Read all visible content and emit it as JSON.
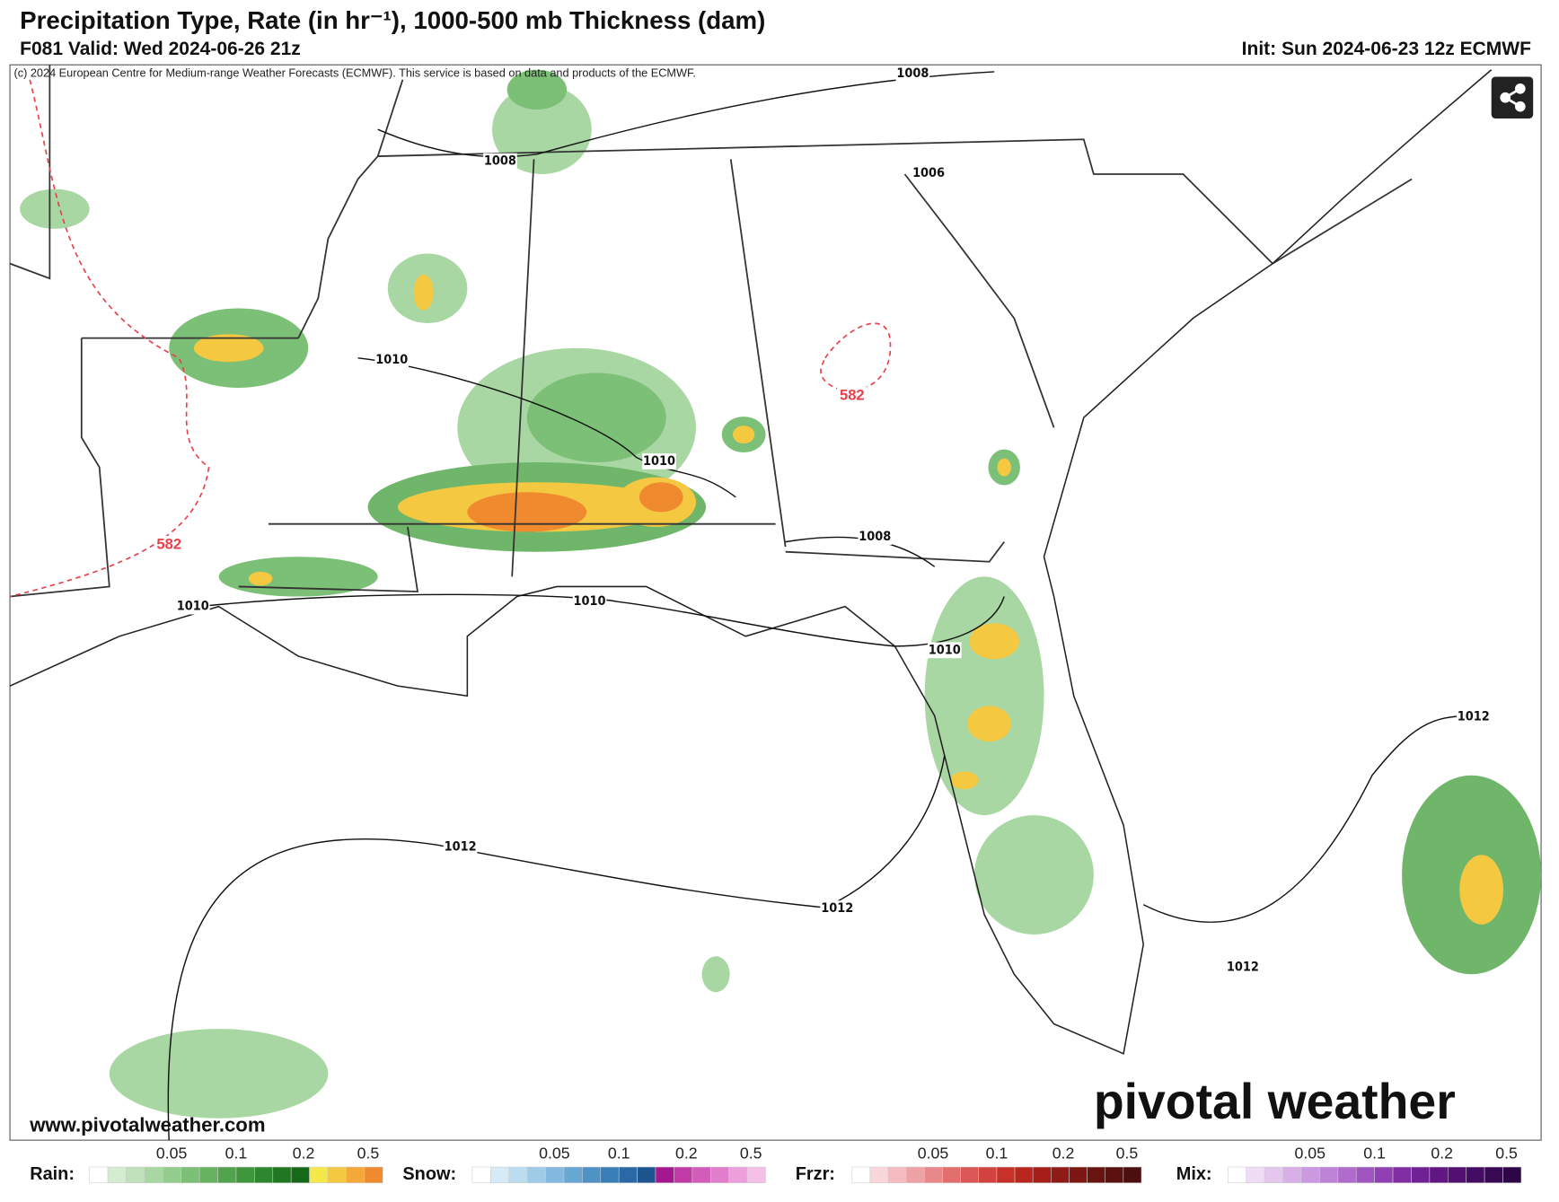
{
  "header": {
    "title": "Precipitation Type, Rate (in hr⁻¹), 1000-500 mb Thickness (dam)",
    "valid": "F081 Valid: Wed 2024-06-26 21z",
    "init": "Init: Sun 2024-06-23 12z ECMWF"
  },
  "map": {
    "copyright": "(c) 2024 European Centre for Medium-range Weather Forecasts (ECMWF). This service is based on data and products of the ECMWF.",
    "pressure_labels": [
      "1008",
      "1008",
      "1006",
      "1010",
      "1010",
      "1008",
      "1010",
      "1010",
      "1010",
      "1012",
      "1012",
      "1012",
      "1012"
    ],
    "thickness_labels": [
      "582",
      "582"
    ],
    "website": "www.pivotalweather.com",
    "logo": "pivotal weather"
  },
  "legend": [
    {
      "name": "Rain:",
      "ticks": [
        "0.05",
        "0.1",
        "0.2",
        "0.5"
      ]
    },
    {
      "name": "Snow:",
      "ticks": [
        "0.05",
        "0.1",
        "0.2",
        "0.5"
      ]
    },
    {
      "name": "Frzr:",
      "ticks": [
        "0.05",
        "0.1",
        "0.2",
        "0.5"
      ]
    },
    {
      "name": "Mix:",
      "ticks": [
        "0.05",
        "0.1",
        "0.2",
        "0.5"
      ]
    }
  ]
}
